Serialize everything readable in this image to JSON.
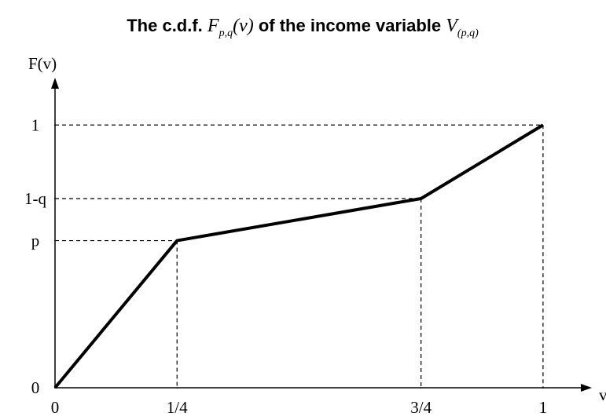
{
  "chart_data": {
    "type": "line",
    "title": [
      "The c.d.f. ",
      "F",
      "p,q",
      "(v)",
      " of the income variable ",
      "V",
      "(p,q)"
    ],
    "y_label": "F(v)",
    "x_label": "v",
    "x": [
      0,
      0.25,
      0.75,
      1
    ],
    "series": [
      {
        "name": "F(v)",
        "color": "#000000",
        "values": [
          0,
          0.56,
          0.72,
          1
        ]
      }
    ],
    "xlim": [
      0,
      1.1
    ],
    "ylim": [
      0,
      1.18
    ],
    "xticks": [
      0,
      {
        "value": 0.25,
        "label": "1/4"
      },
      {
        "value": 0.75,
        "label": "3/4"
      },
      1
    ],
    "yticks": [
      0,
      {
        "value": 0.56,
        "label": "p"
      },
      {
        "value": 0.72,
        "label": "1-q"
      },
      1
    ],
    "guides": "dashed"
  }
}
